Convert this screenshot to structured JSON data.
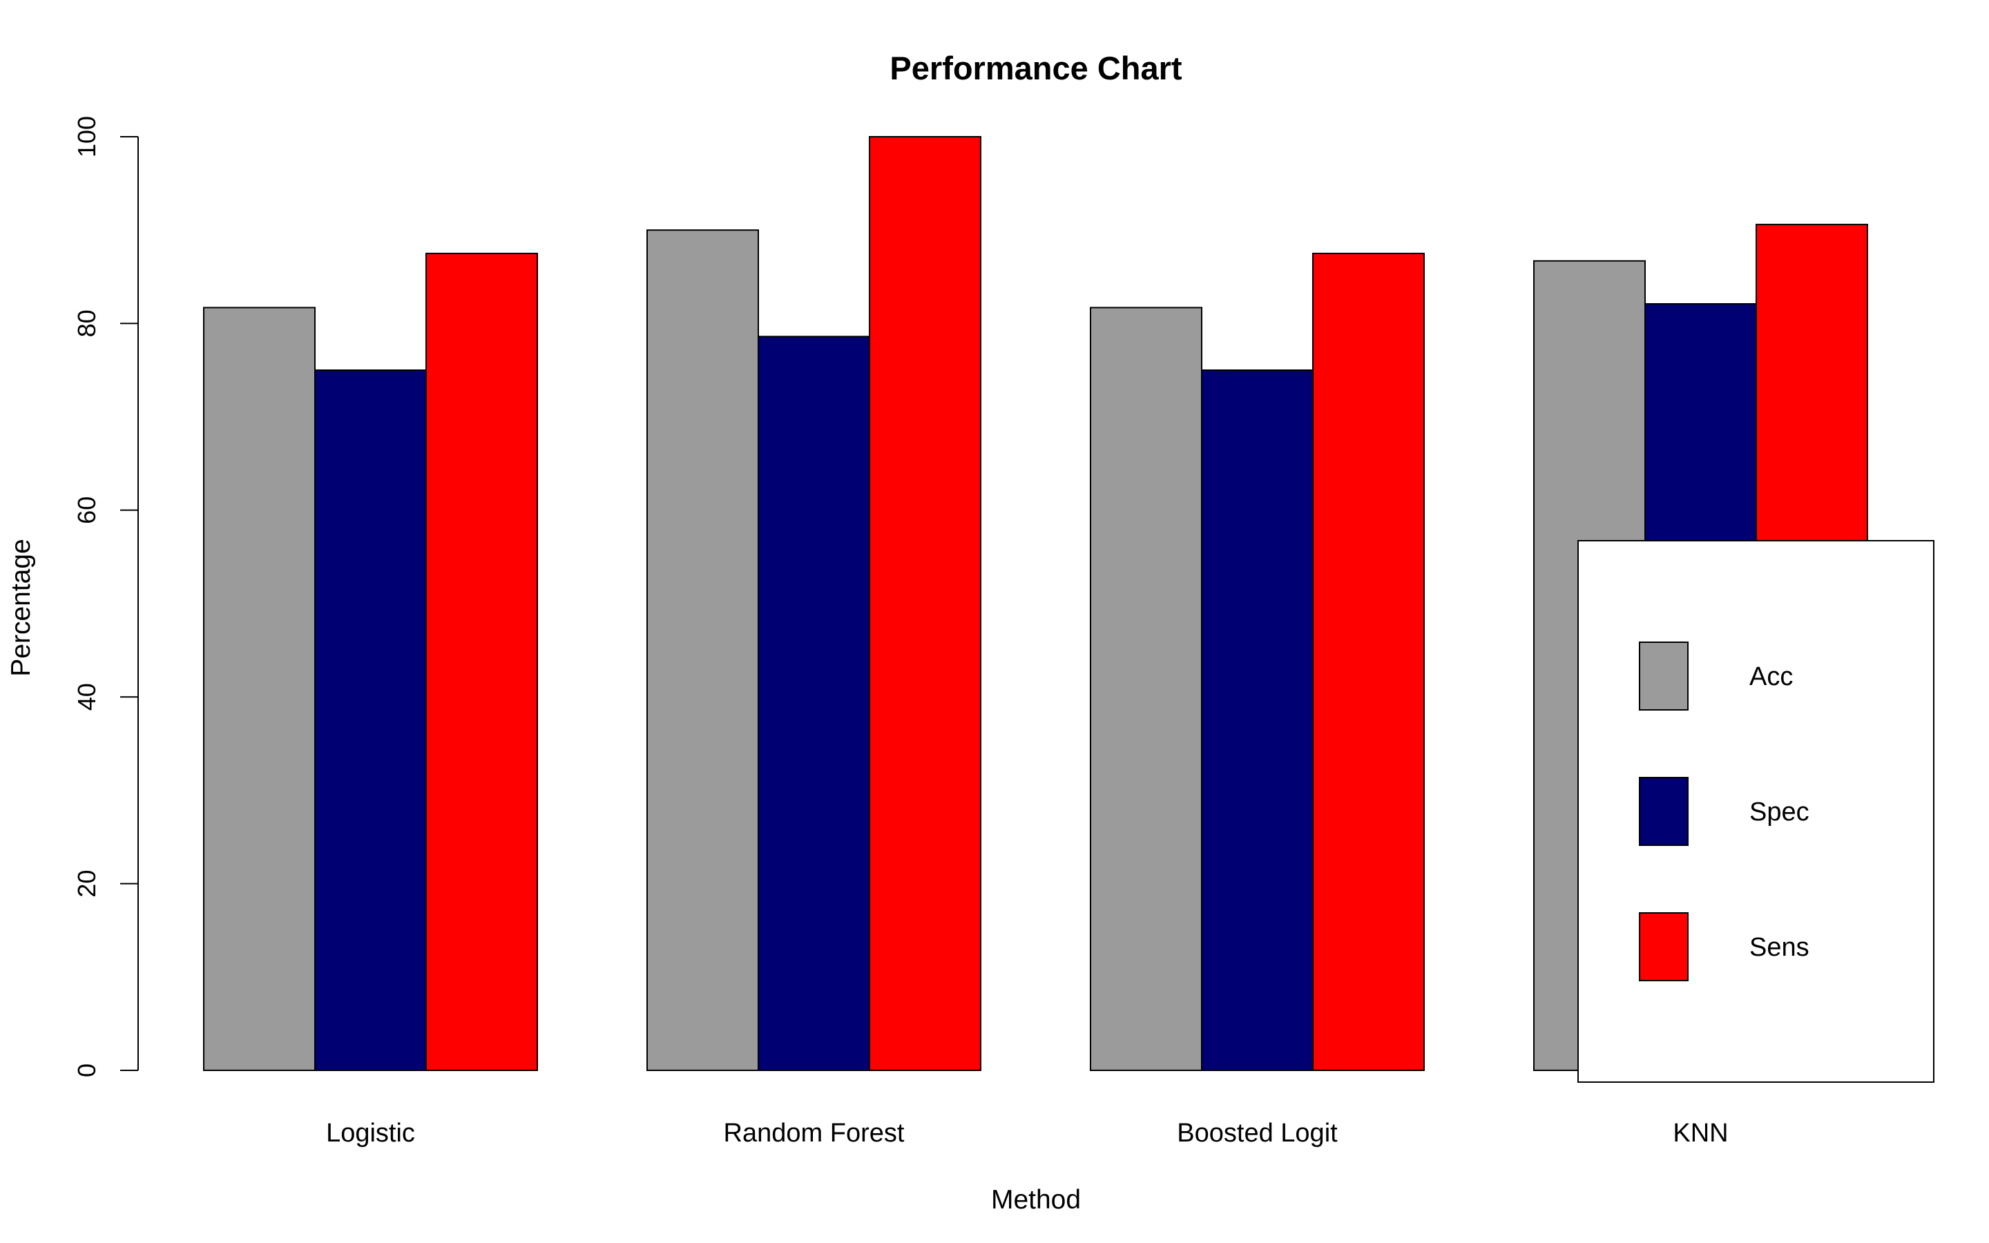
{
  "chart_data": {
    "type": "bar",
    "title": "Performance Chart",
    "xlabel": "Method",
    "ylabel": "Percentage",
    "categories": [
      "Logistic",
      "Random Forest",
      "Boosted Logit",
      "KNN"
    ],
    "series": [
      {
        "name": "Acc",
        "color": "#9b9b9b",
        "values": [
          81.7,
          90.0,
          81.7,
          86.7
        ]
      },
      {
        "name": "Spec",
        "color": "#000072",
        "values": [
          75.0,
          78.6,
          75.0,
          82.1
        ]
      },
      {
        "name": "Sens",
        "color": "#ff0000",
        "values": [
          87.5,
          100.0,
          87.5,
          90.6
        ]
      }
    ],
    "ylim": [
      0,
      100
    ],
    "yticks": [
      0,
      20,
      40,
      60,
      80,
      100
    ],
    "grid": false,
    "legend": "bottom-right"
  }
}
